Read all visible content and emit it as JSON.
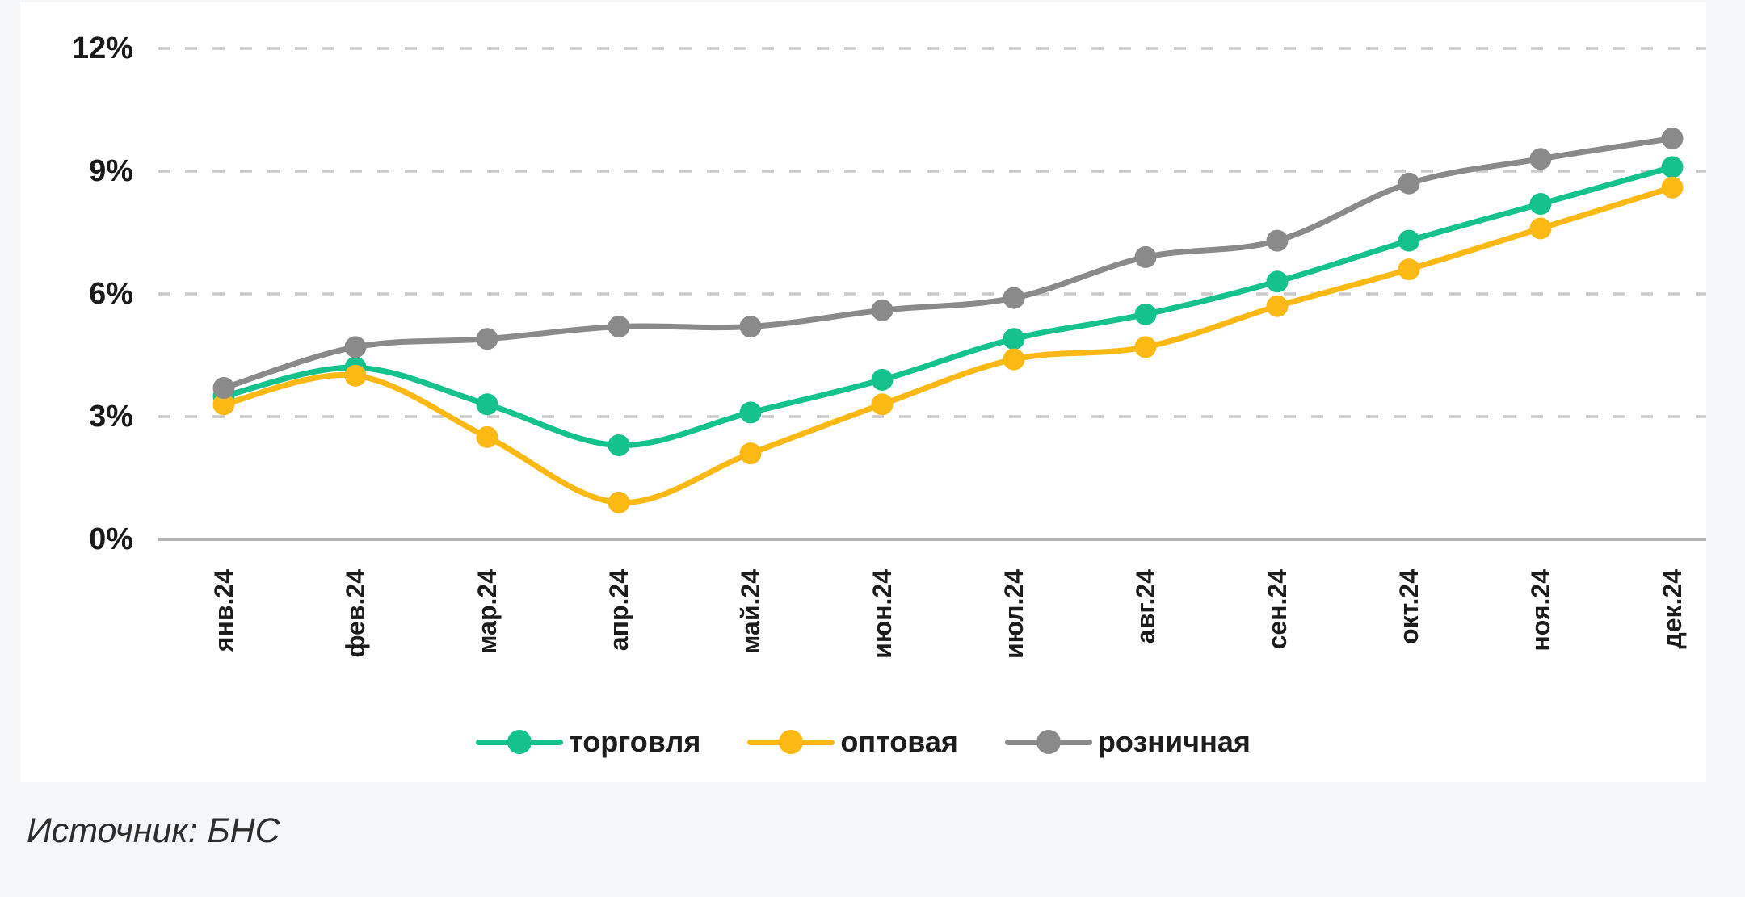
{
  "page": {
    "background_color": "#f5f6f8",
    "card_background_color": "#ffffff"
  },
  "source_note": "Источник: БНС",
  "chart_data": {
    "type": "line",
    "title": "",
    "xlabel": "",
    "ylabel": "",
    "categories": [
      "янв.24",
      "фев.24",
      "мар.24",
      "апр.24",
      "май.24",
      "июн.24",
      "июл.24",
      "авг.24",
      "сен.24",
      "окт.24",
      "ноя.24",
      "дек.24"
    ],
    "series": [
      {
        "name": "торговля",
        "color": "#15C28D",
        "values": [
          3.5,
          4.2,
          3.3,
          2.3,
          3.1,
          3.9,
          4.9,
          5.5,
          6.3,
          7.3,
          8.2,
          9.1
        ]
      },
      {
        "name": "оптовая",
        "color": "#FCB813",
        "values": [
          3.3,
          4.0,
          2.5,
          0.9,
          2.1,
          3.3,
          4.4,
          4.7,
          5.7,
          6.6,
          7.6,
          8.6
        ]
      },
      {
        "name": "розничная",
        "color": "#8A8A8A",
        "values": [
          3.7,
          4.7,
          4.9,
          5.2,
          5.2,
          5.6,
          5.9,
          6.9,
          7.3,
          8.7,
          9.3,
          9.8
        ]
      }
    ],
    "ylim": [
      0,
      12
    ],
    "ytick_step": 3,
    "ytick_labels": [
      "0%",
      "3%",
      "6%",
      "9%",
      "12%"
    ],
    "unit": "%",
    "grid": "horizontal dashed",
    "legend_position": "bottom",
    "marker": "circle"
  },
  "style_colors": {
    "gridline": "#c9c9c9",
    "axis_line": "#b3b3b3",
    "tick_text": "#1a1a1a"
  }
}
